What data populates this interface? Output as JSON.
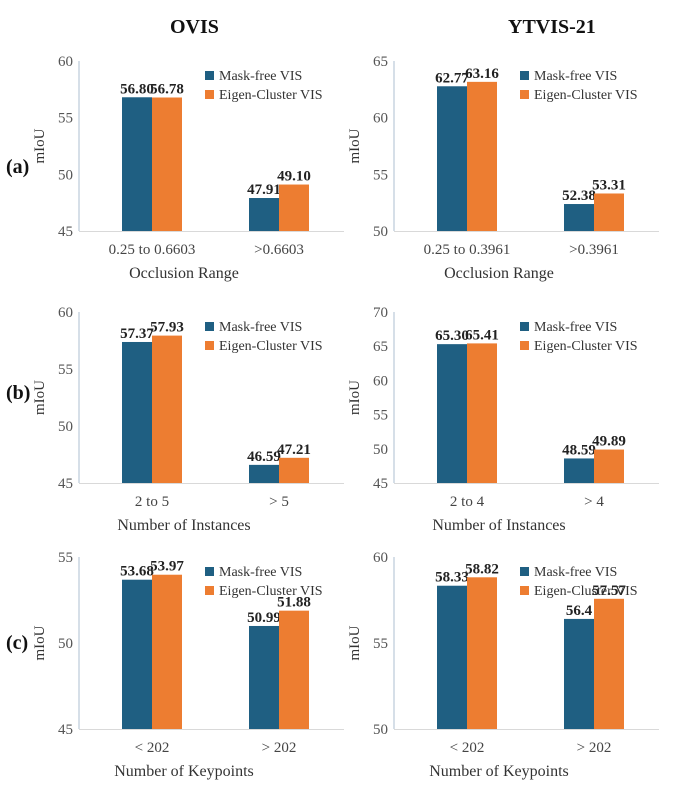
{
  "column_titles": [
    "OVIS",
    "YTVIS-21"
  ],
  "row_labels": [
    "(a)",
    "(b)",
    "(c)"
  ],
  "colors": {
    "mask_free": "#1f5f82",
    "eigen": "#ed7d31",
    "axis": "#aebfd0"
  },
  "chart_data": [
    {
      "type": "bar",
      "row": 0,
      "col": 0,
      "ylabel": "mIoU",
      "xlabel": "Occlusion Range",
      "categories": [
        "0.25 to 0.6603",
        ">0.6603"
      ],
      "ylim": [
        45,
        60
      ],
      "yticks": [
        45,
        50,
        55,
        60
      ],
      "legend": "top-right",
      "series": [
        {
          "name": "Mask-free VIS",
          "values": [
            56.8,
            47.91
          ],
          "labels": [
            "56.80",
            "47.91"
          ]
        },
        {
          "name": "Eigen-Cluster VIS",
          "values": [
            56.78,
            49.1
          ],
          "labels": [
            "56.78",
            "49.10"
          ]
        }
      ]
    },
    {
      "type": "bar",
      "row": 0,
      "col": 1,
      "ylabel": "mIoU",
      "xlabel": "Occlusion Range",
      "categories": [
        "0.25 to 0.3961",
        ">0.3961"
      ],
      "ylim": [
        50,
        65
      ],
      "yticks": [
        50,
        55,
        60,
        65
      ],
      "legend": "top-right",
      "series": [
        {
          "name": "Mask-free VIS",
          "values": [
            62.77,
            52.38
          ],
          "labels": [
            "62.77",
            "52.38"
          ]
        },
        {
          "name": "Eigen-Cluster VIS",
          "values": [
            63.16,
            53.31
          ],
          "labels": [
            "63.16",
            "53.31"
          ]
        }
      ]
    },
    {
      "type": "bar",
      "row": 1,
      "col": 0,
      "ylabel": "mIoU",
      "xlabel": "Number of Instances",
      "categories": [
        "2 to 5",
        "> 5"
      ],
      "ylim": [
        45,
        60
      ],
      "yticks": [
        45,
        50,
        55,
        60
      ],
      "legend": "top-right",
      "series": [
        {
          "name": "Mask-free VIS",
          "values": [
            57.37,
            46.59
          ],
          "labels": [
            "57.37",
            "46.59"
          ]
        },
        {
          "name": "Eigen-Cluster VIS",
          "values": [
            57.93,
            47.21
          ],
          "labels": [
            "57.93",
            "47.21"
          ]
        }
      ]
    },
    {
      "type": "bar",
      "row": 1,
      "col": 1,
      "ylabel": "mIoU",
      "xlabel": "Number of Instances",
      "categories": [
        "2 to 4",
        "> 4"
      ],
      "ylim": [
        45,
        70
      ],
      "yticks": [
        45,
        50,
        55,
        60,
        65,
        70
      ],
      "legend": "top-right",
      "series": [
        {
          "name": "Mask-free VIS",
          "values": [
            65.3,
            48.59
          ],
          "labels": [
            "65.30",
            "48.59"
          ]
        },
        {
          "name": "Eigen-Cluster VIS",
          "values": [
            65.41,
            49.89
          ],
          "labels": [
            "65.41",
            "49.89"
          ]
        }
      ]
    },
    {
      "type": "bar",
      "row": 2,
      "col": 0,
      "ylabel": "mIoU",
      "xlabel": "Number of Keypoints",
      "categories": [
        "< 202",
        "> 202"
      ],
      "ylim": [
        45,
        55
      ],
      "yticks": [
        45,
        50,
        55
      ],
      "legend": "top-right",
      "series": [
        {
          "name": "Mask-free VIS",
          "values": [
            53.68,
            50.99
          ],
          "labels": [
            "53.68",
            "50.99"
          ]
        },
        {
          "name": "Eigen-Cluster VIS",
          "values": [
            53.97,
            51.88
          ],
          "labels": [
            "53.97",
            "51.88"
          ]
        }
      ]
    },
    {
      "type": "bar",
      "row": 2,
      "col": 1,
      "ylabel": "mIoU",
      "xlabel": "Number of Keypoints",
      "categories": [
        "< 202",
        "> 202"
      ],
      "ylim": [
        50,
        60
      ],
      "yticks": [
        50,
        55,
        60
      ],
      "legend": "top-right",
      "series": [
        {
          "name": "Mask-free VIS",
          "values": [
            58.33,
            56.4
          ],
          "labels": [
            "58.33",
            "56.4"
          ]
        },
        {
          "name": "Eigen-Cluster VIS",
          "values": [
            58.82,
            57.57
          ],
          "labels": [
            "58.82",
            "57.57"
          ]
        }
      ]
    }
  ]
}
